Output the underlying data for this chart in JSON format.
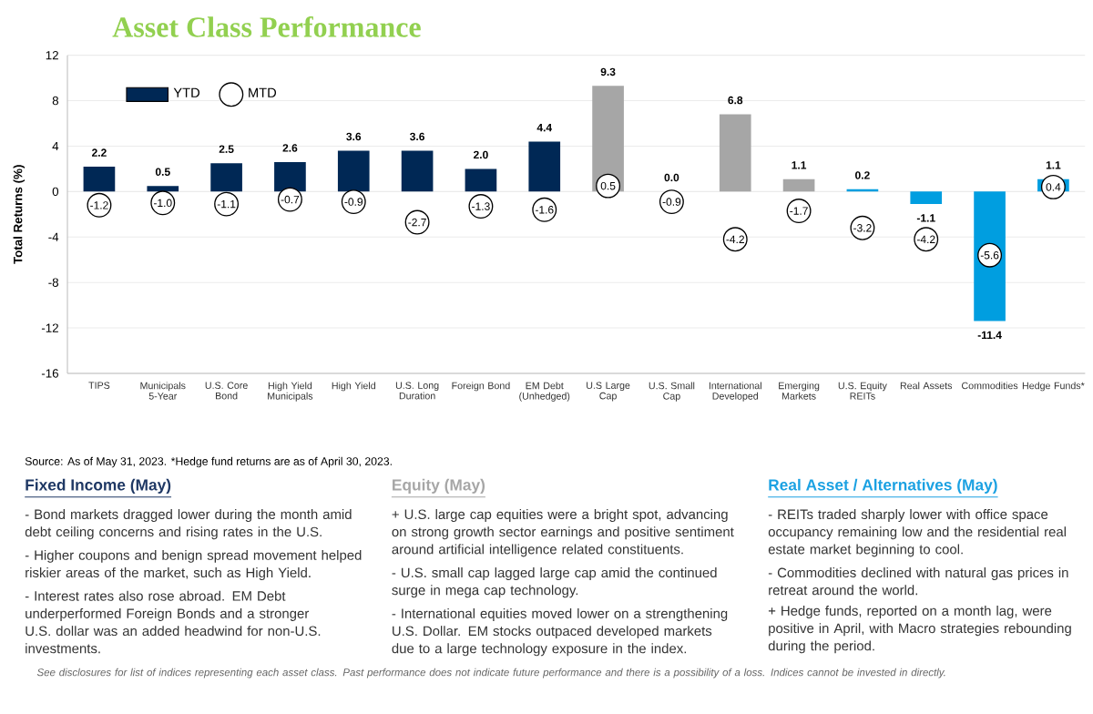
{
  "chart_data": {
    "type": "bar",
    "title": "Asset Class Performance",
    "ylabel": "Total Returns (%)",
    "categories": [
      "TIPS",
      "Municipals 5-Year",
      "U.S. Core Bond",
      "High Yield Municipals",
      "High Yield",
      "U.S. Long Duration",
      "Foreign Bond",
      "EM Debt (Unhedged)",
      "U.S Large Cap",
      "U.S. Small Cap",
      "International Developed",
      "Emerging Markets",
      "U.S. Equity REITs",
      "Real Assets",
      "Commodities",
      "Hedge Funds*"
    ],
    "series": [
      {
        "name": "YTD",
        "color": "#002855",
        "colors": [
          "#002855",
          "#002855",
          "#002855",
          "#002855",
          "#002855",
          "#002855",
          "#002855",
          "#002855",
          "#a6a6a6",
          "#a6a6a6",
          "#a6a6a6",
          "#a6a6a6",
          "#009ee0",
          "#009ee0",
          "#009ee0",
          "#009ee0"
        ],
        "values": [
          2.2,
          0.5,
          2.5,
          2.6,
          3.6,
          3.6,
          2.0,
          4.4,
          9.3,
          0.0,
          6.8,
          1.1,
          0.2,
          -1.1,
          -11.4,
          1.1
        ],
        "value_labels": [
          "2.2",
          "0.5",
          "2.5",
          "2.6",
          "3.6",
          "3.6",
          "2.0",
          "4.4",
          "9.3",
          "0.0",
          "6.8",
          "1.1",
          "0.2",
          "-1.1",
          "-11.4",
          "1.1"
        ]
      },
      {
        "name": "MTD",
        "type": "scatter",
        "color": "#000000",
        "marker": "circle",
        "values": [
          -1.2,
          -1.0,
          -1.1,
          -0.7,
          -0.9,
          -2.7,
          -1.3,
          -1.6,
          0.5,
          -0.9,
          -4.2,
          -1.7,
          -3.2,
          -4.2,
          -5.6,
          0.4
        ],
        "value_labels": [
          "-1.2",
          "-1.0",
          "-1.1",
          "-0.7",
          "-0.9",
          "-2.7",
          "-1.3",
          "-1.6",
          "0.5",
          "-0.9",
          "-4.2",
          "-1.7",
          "-3.2",
          "-4.2",
          "-5.6",
          "0.4"
        ]
      }
    ],
    "ylim": [
      -16,
      12
    ],
    "yticks": [
      -16,
      -12,
      -8,
      -4,
      0,
      4,
      8,
      12
    ],
    "grid": "y",
    "legend": "top left",
    "annotations": [
      "Source: As of May 31, 2023. *Hedge fund returns are as of April 30, 2023.",
      "Fixed Income (May)",
      "- Bond markets dragged lower during the month amid debt ceiling concerns and rising rates in the U.S.",
      "- Higher coupons and benign spread movement helped riskier areas of the market, such as High Yield.",
      "- Interest rates also rose abroad. EM Debt underperformed Foreign Bonds and a stronger U.S. dollar was an added headwind for non-U.S. investments.",
      "Equity (May)",
      "+ U.S. large cap equities were a bright spot, advancing on strong growth sector earnings and positive sentiment around artificial intelligence related constituents.",
      "- U.S. small cap lagged large cap amid the continued surge in mega cap technology.",
      "- International equities moved lower on a strengthening U.S. Dollar. EM stocks outpaced developed markets due to a large technology exposure in the index.",
      "Real Asset / Alternatives (May)",
      "- REITs traded sharply lower with office space occupancy remaining low and the residential real estate market beginning to cool.",
      "- Commodities declined with natural gas prices in retreat around the world.",
      "+ Hedge funds, reported on a month lag, were positive in April, with Macro strategies rebounding during the period.",
      "See disclosures for list of indices representing each asset class. Past performance does not indicate future performance and there is a possibility of a loss. Indices cannot be invested in directly."
    ]
  }
}
